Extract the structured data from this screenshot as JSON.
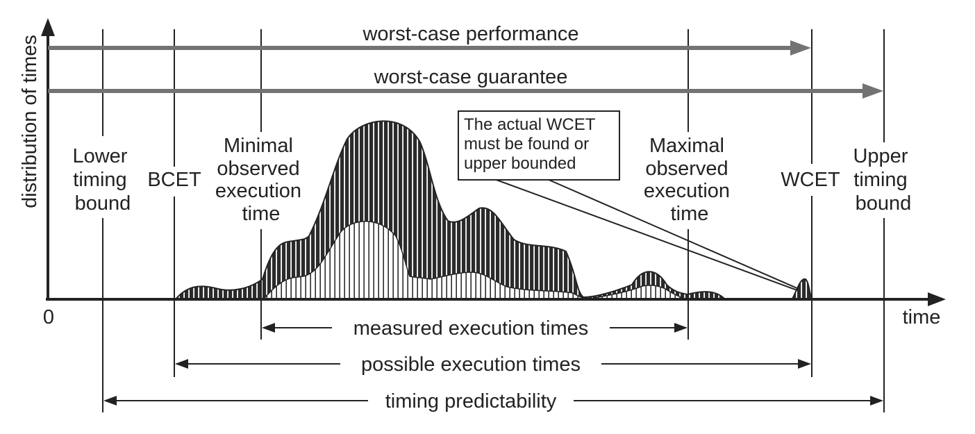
{
  "axes": {
    "y_label": "distribution of times",
    "x_label": "time",
    "origin": "0"
  },
  "arrows": {
    "worst_case_performance": "worst-case performance",
    "worst_case_guarantee": "worst-case guarantee"
  },
  "markers": {
    "lower_timing_bound": [
      "Lower",
      "timing",
      "bound"
    ],
    "bcet": "BCET",
    "min_observed": [
      "Minimal",
      "observed",
      "execution",
      "time"
    ],
    "max_observed": [
      "Maximal",
      "observed",
      "execution",
      "time"
    ],
    "wcet": "WCET",
    "upper_timing_bound": [
      "Upper",
      "timing",
      "bound"
    ]
  },
  "callout": [
    "The actual WCET",
    "must be found or",
    "upper bounded"
  ],
  "ranges": {
    "measured": "measured execution times",
    "possible": "possible execution times",
    "predictability": "timing predictability"
  },
  "colors": {
    "dark_distribution": "#2b2b2b",
    "light_distribution": "#ffffff",
    "guarantee_arrows": "#737373",
    "lines": "#222222"
  }
}
